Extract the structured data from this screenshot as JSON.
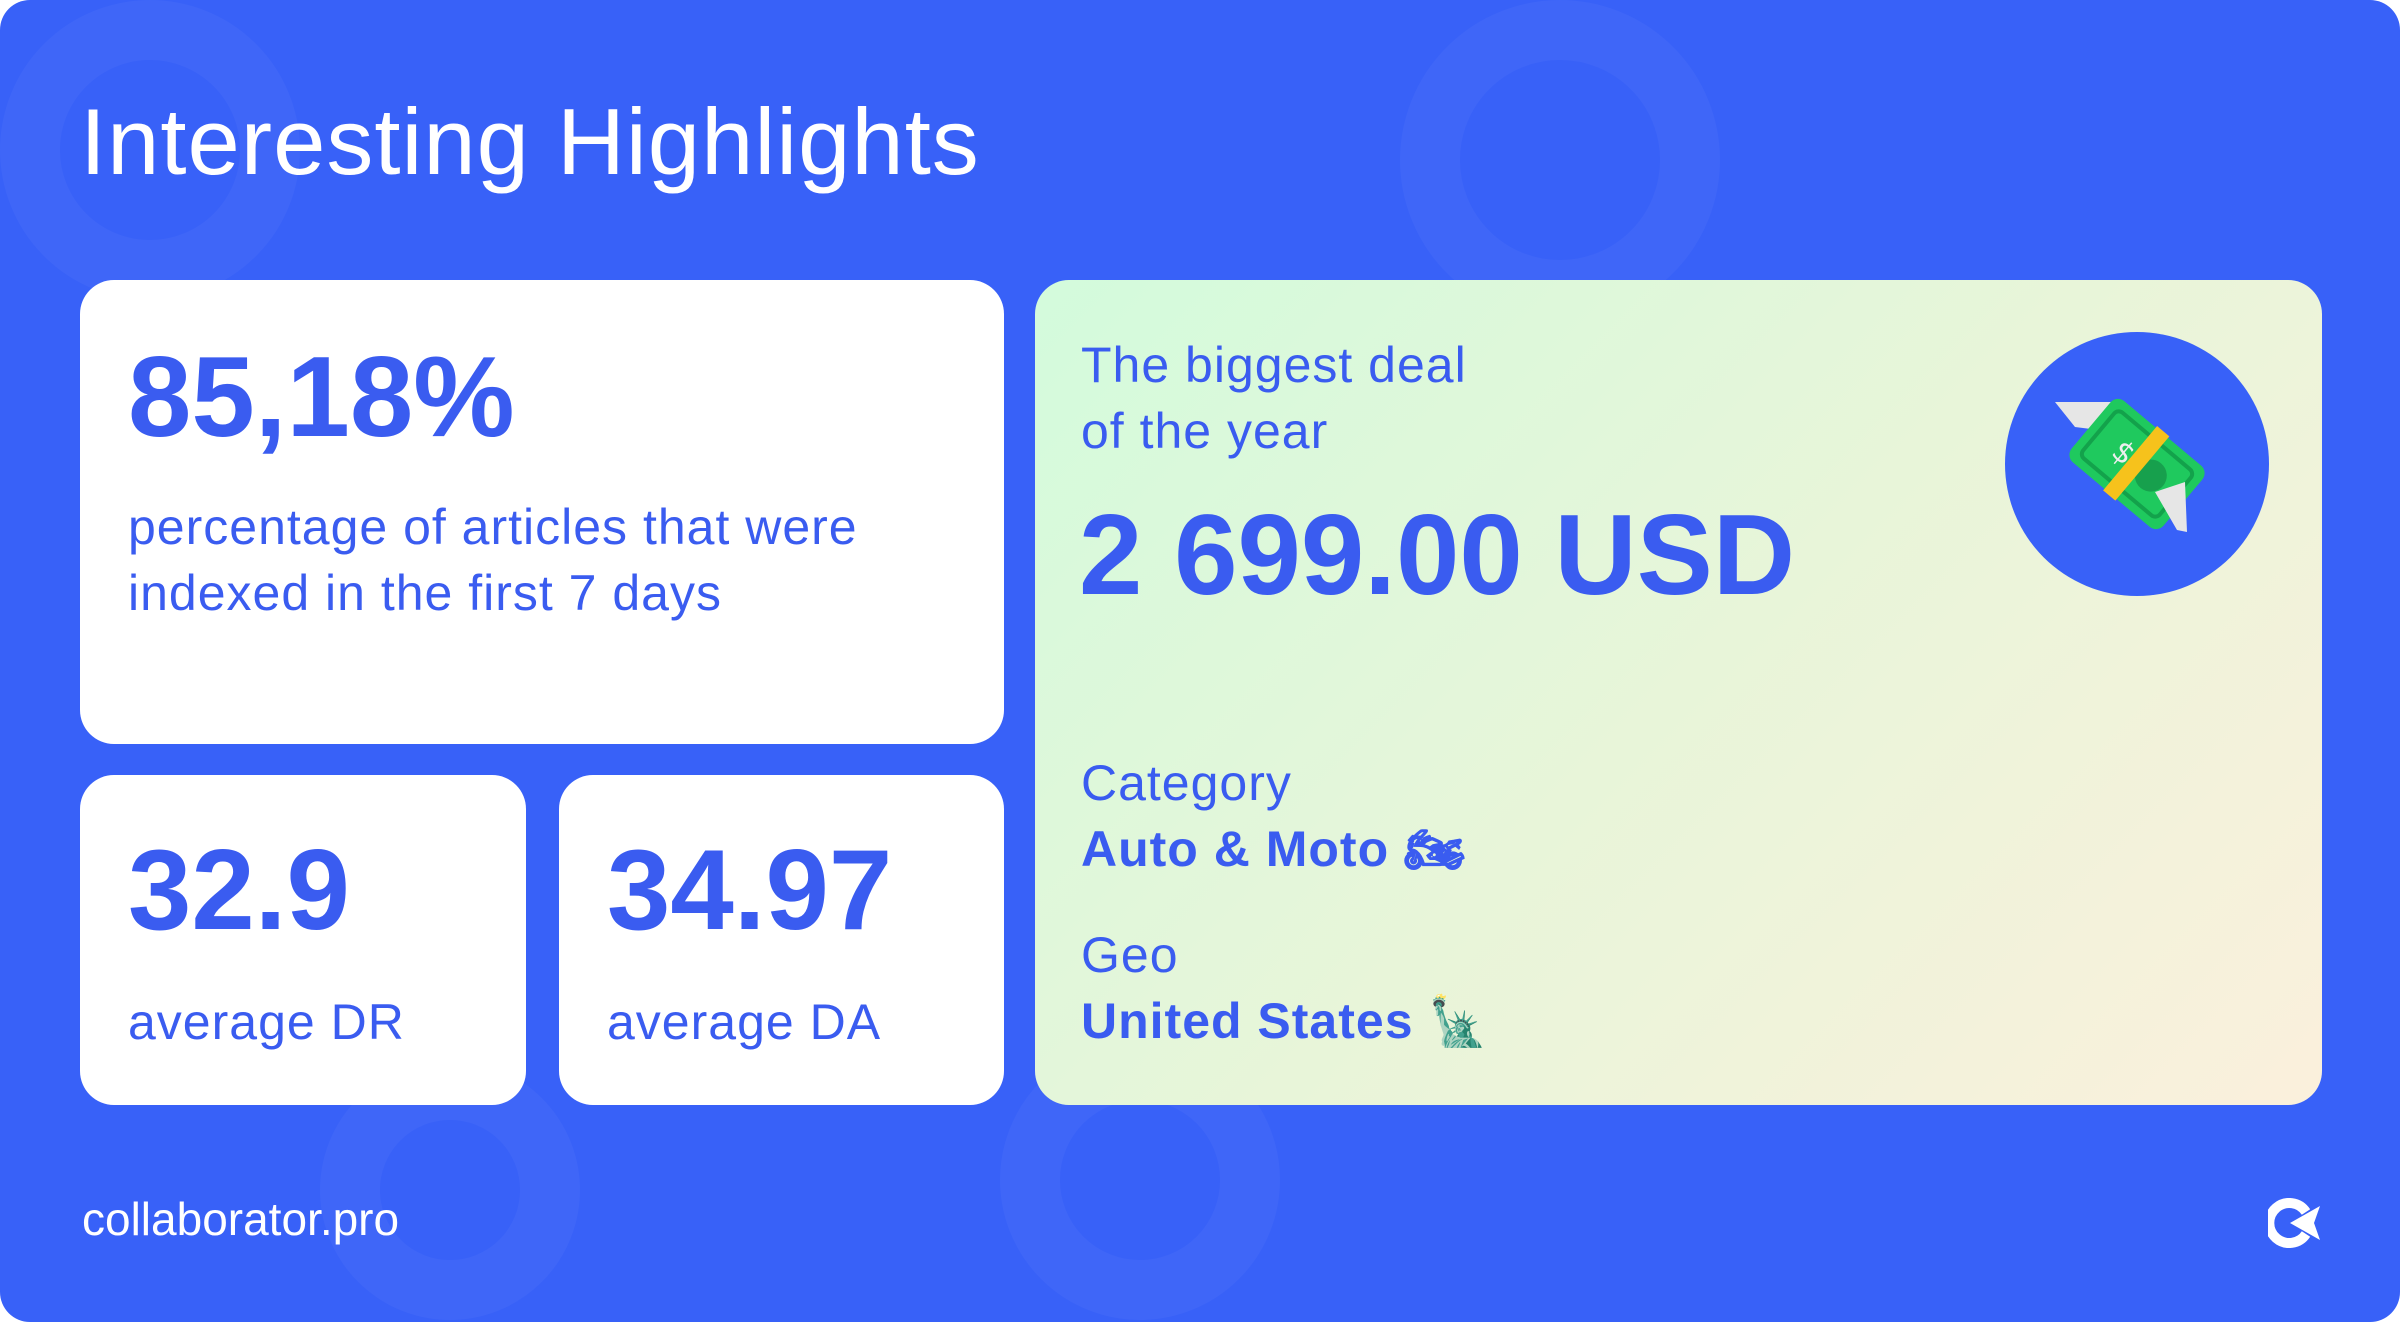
{
  "title": "Interesting Highlights",
  "indexed": {
    "value": "85,18%",
    "label": "percentage of articles that were indexed in the first 7 days"
  },
  "dr": {
    "value": "32.9",
    "label": "average DR"
  },
  "da": {
    "value": "34.97",
    "label": "average DA"
  },
  "deal": {
    "heading_line1": "The biggest deal",
    "heading_line2": "of the year",
    "amount": "2 699.00 USD",
    "icon": "money-with-wings-icon",
    "category_label": "Category",
    "category_value": "Auto & Moto",
    "category_icon": "motorcycle-icon",
    "geo_label": "Geo",
    "geo_value": "United States",
    "geo_icon": "statue-of-liberty-icon"
  },
  "footer": {
    "site": "collaborator.pro",
    "logo": "collaborator-logo-icon"
  },
  "colors": {
    "background": "#3861f8",
    "text": "#3a5cf0"
  }
}
